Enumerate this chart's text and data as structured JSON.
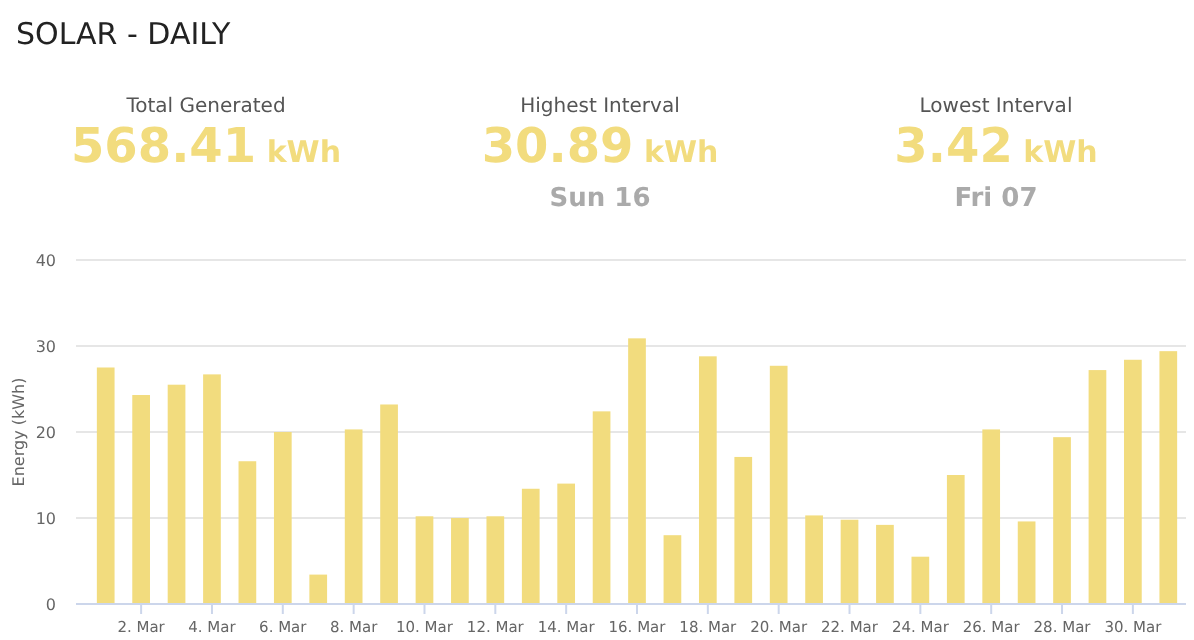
{
  "chart_data": {
    "type": "bar",
    "title": "SOLAR - DAILY",
    "annotations": [
      "Total Generated",
      "568.41 kWh",
      "Highest Interval",
      "30.89 kWh",
      "Sun 16",
      "Lowest Interval",
      "3.42 kWh",
      "Fri 07"
    ],
    "ylabel": "Energy (kWh)",
    "categories": [
      null,
      "2. Mar",
      null,
      "4. Mar",
      null,
      "6. Mar",
      null,
      "8. Mar",
      null,
      "10. Mar",
      null,
      "12. Mar",
      null,
      "14. Mar",
      null,
      "16. Mar",
      null,
      "18. Mar",
      null,
      "20. Mar",
      null,
      "22. Mar",
      null,
      "24. Mar",
      null,
      "26. Mar",
      null,
      "28. Mar",
      null,
      "30. Mar",
      null
    ],
    "values": [
      27.5,
      24.3,
      25.5,
      26.7,
      16.6,
      20.0,
      3.42,
      20.3,
      23.2,
      10.2,
      10.0,
      10.2,
      13.4,
      14.0,
      22.4,
      30.89,
      8.0,
      28.8,
      17.1,
      27.7,
      10.3,
      9.8,
      9.2,
      5.5,
      15.0,
      20.3,
      9.6,
      19.4,
      27.2,
      28.4,
      29.4
    ],
    "color": "#f2dc7e",
    "ylim": [
      0,
      40
    ],
    "yticks": [
      0,
      10,
      20,
      30,
      40
    ],
    "grid": "y"
  }
}
